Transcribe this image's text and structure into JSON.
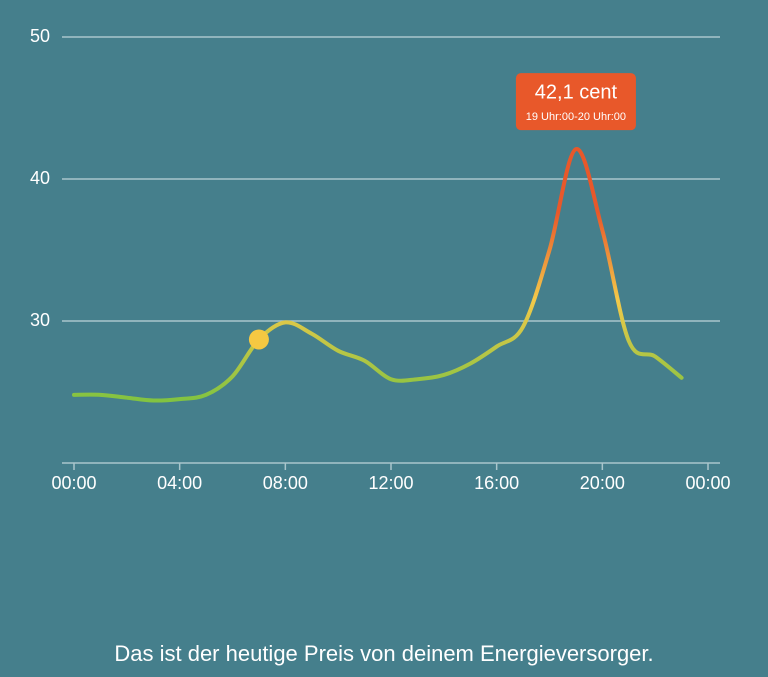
{
  "chart_data": {
    "type": "line",
    "x": [
      0,
      1,
      2,
      3,
      4,
      5,
      6,
      7,
      8,
      9,
      10,
      11,
      12,
      13,
      14,
      15,
      16,
      17,
      18,
      19,
      20,
      21,
      22,
      23
    ],
    "series": [
      {
        "values": [
          24.8,
          24.8,
          24.6,
          24.4,
          24.5,
          24.8,
          26.1,
          28.7,
          29.9,
          29.1,
          27.9,
          27.2,
          25.9,
          25.9,
          26.2,
          27.0,
          28.2,
          29.6,
          35.0,
          42.1,
          36.4,
          28.6,
          27.5,
          26.0
        ],
        "value_labels": [
          null,
          null,
          null,
          null,
          null,
          null,
          null,
          null,
          null,
          null,
          null,
          null,
          null,
          null,
          null,
          null,
          null,
          null,
          null,
          "42,1 cent",
          null,
          null,
          null,
          null
        ]
      }
    ],
    "annotation": "19 Uhr:00-20 Uhr:00",
    "highlight_index": 7,
    "gradient_colors": [
      "#82c341",
      "#f3c94a",
      "#e8582a"
    ],
    "tooltip_color": "#e8582a",
    "marker_color": "#f5c842",
    "xlim": [
      0,
      24
    ],
    "xticks": [
      {
        "value": 0,
        "label": "00:00"
      },
      {
        "value": 4,
        "label": "04:00"
      },
      {
        "value": 8,
        "label": "08:00"
      },
      {
        "value": 12,
        "label": "12:00"
      },
      {
        "value": 16,
        "label": "16:00"
      },
      {
        "value": 20,
        "label": "20:00"
      },
      {
        "value": 24,
        "label": "00:00"
      }
    ],
    "ylim": [
      20,
      50
    ],
    "yticks": [
      30,
      40,
      50
    ],
    "grid": true,
    "caption": "Das ist der heutige Preis von deinem Energieversorger."
  }
}
